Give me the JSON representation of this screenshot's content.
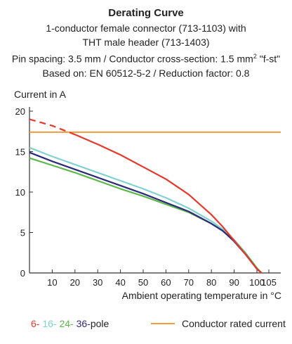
{
  "header": {
    "title": "Derating Curve",
    "line1": "1-conductor female connector (713-1103) with",
    "line2": "THT male header (713-1403)",
    "line3_a": "Pin spacing: 3.5 mm / Conductor cross-section: 1.5 mm",
    "line3_sup": "2",
    "line3_b": " \"f-st\"",
    "line4": "Based on: EN 60512-5-2 / Reduction factor: 0.8"
  },
  "legend": {
    "p6": "6-",
    "p16": "16-",
    "p24": "24-",
    "p36": "36-",
    "pole_suffix": "pole",
    "rated": "Conductor rated current"
  },
  "colors": {
    "red": "#e43a2c",
    "cyan": "#7fd1cf",
    "green": "#5cb84a",
    "navy": "#2e2a7a",
    "orange": "#f39c3b",
    "axis": "#333333"
  },
  "chart_data": {
    "type": "line",
    "ylabel": "Current in A",
    "xlabel": "Ambient operating temperature in °C",
    "xlim": [
      0,
      105
    ],
    "ylim": [
      0,
      20
    ],
    "xticks": [
      10,
      20,
      30,
      40,
      50,
      60,
      70,
      80,
      90,
      100,
      105
    ],
    "yticks": [
      0,
      5,
      10,
      15,
      20
    ],
    "grid": false,
    "rated_current": 17.4,
    "series": [
      {
        "name": "6-pole",
        "color_key": "red",
        "dashed_until_x": 20,
        "x": [
          0,
          10,
          20,
          30,
          40,
          50,
          60,
          70,
          80,
          85,
          90,
          95,
          100,
          102
        ],
        "y": [
          19.0,
          18.2,
          17.1,
          15.9,
          14.6,
          13.1,
          11.6,
          9.7,
          7.2,
          5.7,
          4.0,
          2.3,
          0.5,
          0
        ]
      },
      {
        "name": "16-pole",
        "color_key": "cyan",
        "x": [
          0,
          10,
          20,
          30,
          40,
          50,
          60,
          70,
          80,
          85,
          90,
          95,
          100,
          102
        ],
        "y": [
          15.5,
          14.4,
          13.4,
          12.4,
          11.4,
          10.4,
          9.3,
          8.0,
          6.4,
          5.4,
          4.1,
          2.5,
          0.6,
          0
        ]
      },
      {
        "name": "24-pole",
        "color_key": "green",
        "x": [
          0,
          10,
          20,
          30,
          40,
          50,
          60,
          70,
          80,
          85,
          90,
          95,
          100,
          102
        ],
        "y": [
          14.2,
          13.3,
          12.4,
          11.4,
          10.4,
          9.5,
          8.5,
          7.5,
          6.1,
          5.2,
          4.0,
          2.4,
          0.6,
          0
        ]
      },
      {
        "name": "36-pole",
        "color_key": "navy",
        "x": [
          0,
          10,
          20,
          30,
          40,
          50,
          60,
          70,
          80,
          85,
          90,
          95,
          100,
          102
        ],
        "y": [
          14.9,
          13.8,
          12.8,
          11.8,
          10.8,
          9.8,
          8.7,
          7.6,
          6.1,
          5.2,
          3.9,
          2.3,
          0.5,
          0
        ]
      }
    ]
  }
}
